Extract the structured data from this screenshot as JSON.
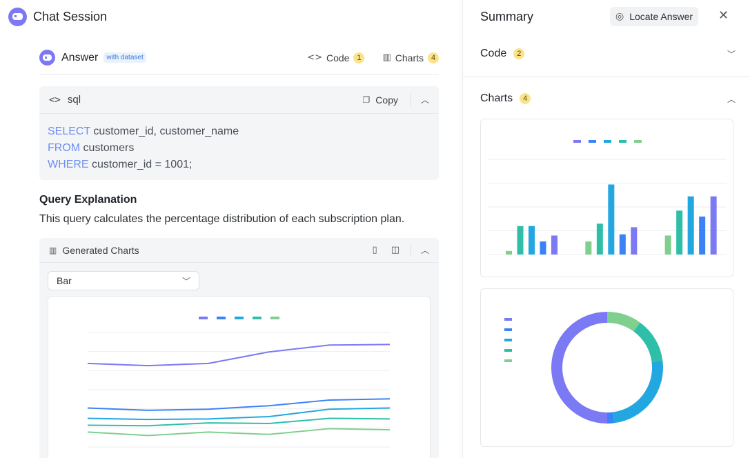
{
  "app": {
    "title": "Chat Session"
  },
  "answer": {
    "label": "Answer",
    "dataset_badge": "with dataset",
    "code_tab": {
      "label": "Code",
      "count": "1"
    },
    "charts_tab": {
      "label": "Charts",
      "count": "4"
    }
  },
  "code_block": {
    "language": "sql",
    "copy_label": "Copy",
    "lines": [
      {
        "kw": "SELECT",
        "rest": " customer_id, customer_name"
      },
      {
        "kw": "FROM",
        "rest": " customers"
      },
      {
        "kw": "WHERE",
        "rest": " customer_id = 1001;"
      }
    ]
  },
  "explanation": {
    "title": "Query Explanation",
    "text": "This query calculates the percentage distribution of each subscription plan."
  },
  "generated_charts": {
    "title": "Generated Charts",
    "chart_type_select": "Bar"
  },
  "summary": {
    "title": "Summary",
    "locate_label": "Locate Answer",
    "code_section": {
      "label": "Code",
      "count": "2"
    },
    "charts_section": {
      "label": "Charts",
      "count": "4"
    }
  },
  "colors": {
    "series": [
      "#7b79f3",
      "#3b82f6",
      "#22a7e0",
      "#2fbfa8",
      "#7fcf8f"
    ]
  },
  "chart_data": [
    {
      "type": "line",
      "title": "",
      "x": [
        1,
        2,
        3,
        4,
        5,
        6
      ],
      "ylim": [
        0,
        10
      ],
      "series": [
        {
          "values": [
            7.3,
            7.1,
            7.3,
            8.3,
            8.9,
            8.95
          ]
        },
        {
          "values": [
            3.4,
            3.2,
            3.3,
            3.6,
            4.1,
            4.2
          ]
        },
        {
          "values": [
            2.5,
            2.4,
            2.45,
            2.65,
            3.3,
            3.4
          ]
        },
        {
          "values": [
            1.9,
            1.85,
            2.1,
            2.05,
            2.5,
            2.45
          ]
        },
        {
          "values": [
            1.3,
            1.0,
            1.3,
            1.1,
            1.6,
            1.5
          ]
        }
      ]
    },
    {
      "type": "bar",
      "title": "",
      "categories": [
        "1",
        "2",
        "3"
      ],
      "ylim": [
        0,
        4.3
      ],
      "series": [
        {
          "values": [
            0.8,
            1.15,
            2.45
          ]
        },
        {
          "values": [
            0.55,
            0.85,
            1.6
          ]
        },
        {
          "values": [
            1.2,
            2.95,
            2.45
          ]
        },
        {
          "values": [
            1.2,
            1.3,
            1.85
          ]
        },
        {
          "values": [
            0.15,
            0.55,
            0.8
          ]
        }
      ]
    },
    {
      "type": "pie",
      "title": "",
      "donut": true,
      "values": [
        50,
        2,
        25,
        13,
        10
      ]
    }
  ]
}
